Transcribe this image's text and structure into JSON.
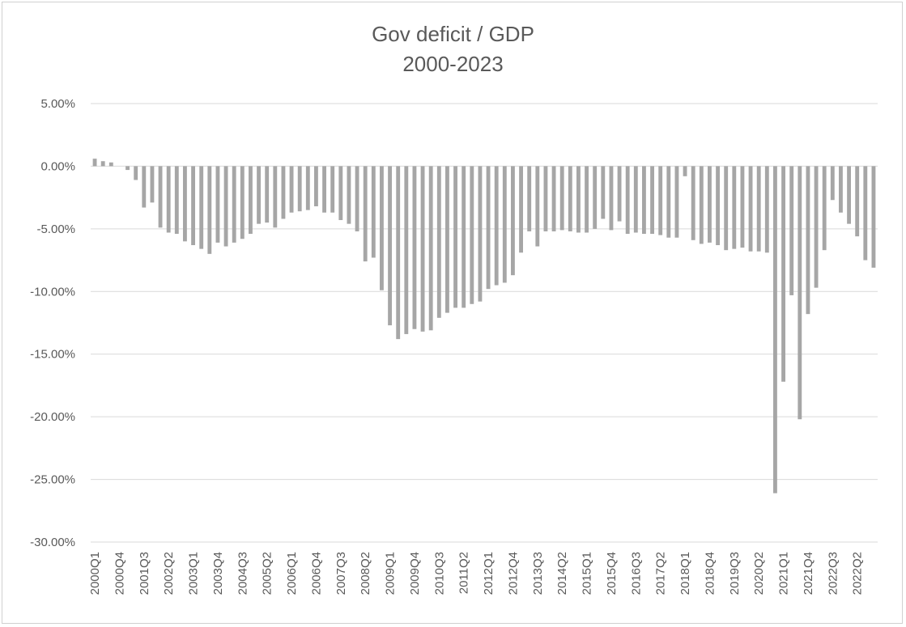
{
  "chart_data": {
    "type": "bar",
    "title": "Gov deficit / GDP",
    "subtitle": "2000-2023",
    "xlabel": "",
    "ylabel": "",
    "ylim": [
      -30,
      5
    ],
    "yticks": [
      5,
      0,
      -5,
      -10,
      -15,
      -20,
      -25,
      -30
    ],
    "ytick_labels": [
      "5.00%",
      "0.00%",
      "-5.00%",
      "-10.00%",
      "-15.00%",
      "-20.00%",
      "-25.00%",
      "-30.00%"
    ],
    "xtick_labels": [
      "2000Q1",
      "2000Q4",
      "2001Q3",
      "2002Q2",
      "2003Q1",
      "2003Q4",
      "2004Q3",
      "2005Q2",
      "2006Q1",
      "2006Q4",
      "2007Q3",
      "2008Q2",
      "2009Q1",
      "2009Q4",
      "2010Q3",
      "2011Q2",
      "2012Q1",
      "2012Q4",
      "2013Q3",
      "2014Q2",
      "2015Q1",
      "2015Q4",
      "2016Q3",
      "2017Q2",
      "2018Q1",
      "2018Q4",
      "2019Q3",
      "2020Q2",
      "2021Q1",
      "2021Q4",
      "2022Q3",
      "2022Q2"
    ],
    "grid": true,
    "legend": "none",
    "bar_color": "#a6a6a6",
    "values": [
      0.6,
      0.4,
      0.3,
      0,
      -0.3,
      -1.1,
      -3.3,
      -2.9,
      -4.9,
      -5.3,
      -5.4,
      -6.0,
      -6.3,
      -6.6,
      -7.0,
      -6.1,
      -6.4,
      -6.1,
      -5.8,
      -5.4,
      -4.6,
      -4.5,
      -4.9,
      -4.2,
      -3.7,
      -3.6,
      -3.5,
      -3.2,
      -3.7,
      -3.7,
      -4.3,
      -4.6,
      -5.2,
      -7.6,
      -7.3,
      -9.9,
      -12.7,
      -13.8,
      -13.4,
      -13.0,
      -13.2,
      -13.1,
      -12.1,
      -11.7,
      -11.3,
      -11.3,
      -11.0,
      -10.8,
      -9.8,
      -9.5,
      -9.3,
      -8.7,
      -6.9,
      -5.2,
      -6.4,
      -5.2,
      -5.2,
      -5.1,
      -5.2,
      -5.3,
      -5.3,
      -5.0,
      -4.2,
      -5.1,
      -4.4,
      -5.4,
      -5.3,
      -5.4,
      -5.4,
      -5.5,
      -5.7,
      -5.7,
      -0.8,
      -5.9,
      -6.2,
      -6.1,
      -6.3,
      -6.7,
      -6.6,
      -6.5,
      -6.8,
      -6.8,
      -6.9,
      -26.1,
      -17.2,
      -10.3,
      -20.2,
      -11.8,
      -9.7,
      -6.7,
      -2.7,
      -3.7,
      -4.6,
      -5.6,
      -7.5,
      -8.1
    ]
  }
}
